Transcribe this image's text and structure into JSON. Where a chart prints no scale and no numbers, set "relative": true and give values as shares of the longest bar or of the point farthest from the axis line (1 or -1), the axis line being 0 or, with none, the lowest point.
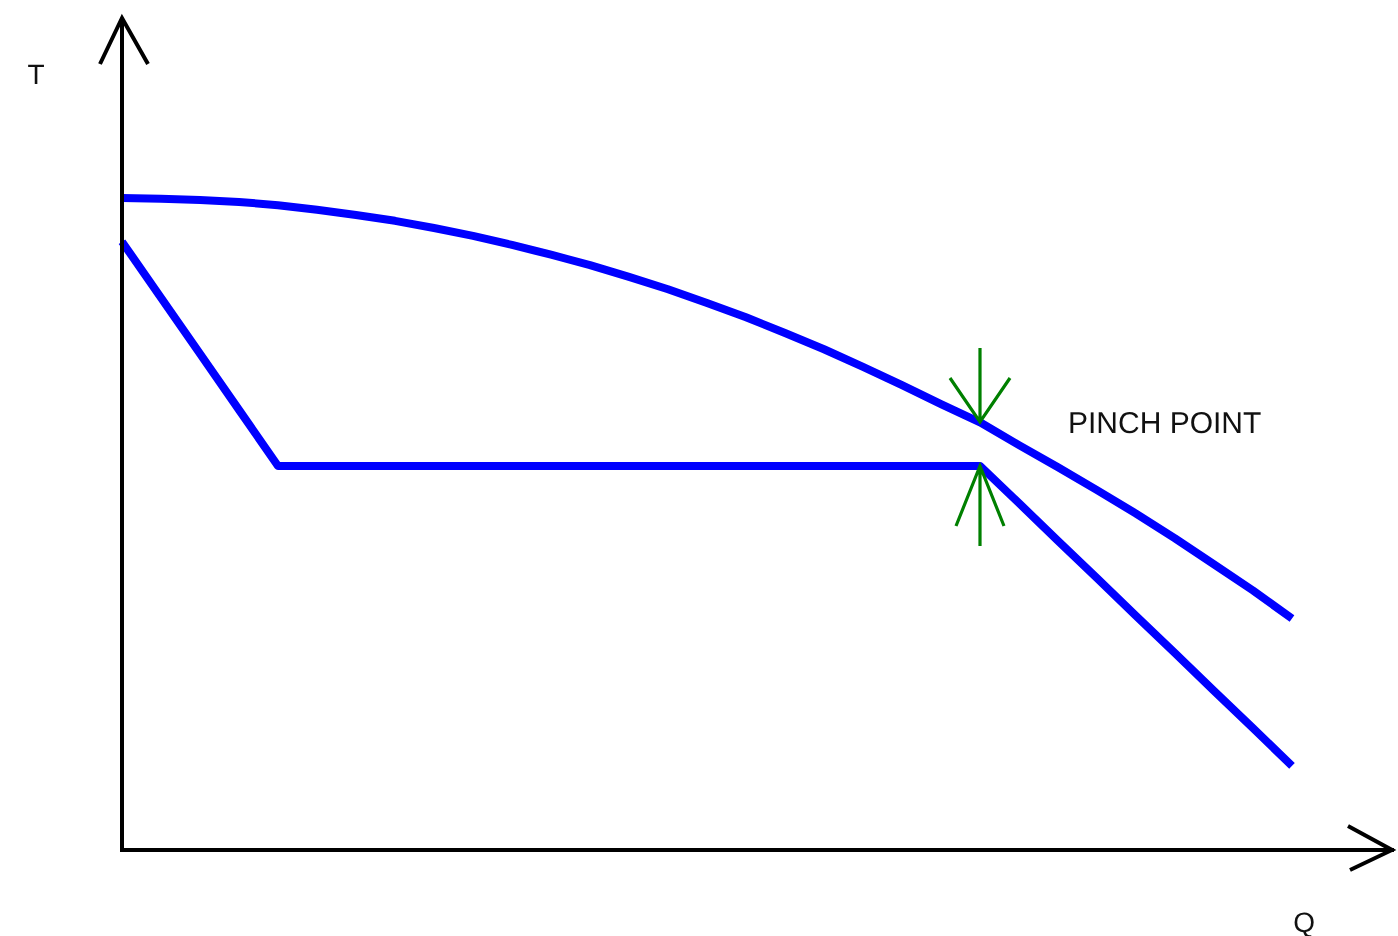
{
  "chart_data": {
    "type": "line",
    "xlabel": "Q",
    "ylabel": "T",
    "annotations": [
      "PINCH POINT"
    ],
    "categories": [
      null,
      null,
      null,
      null,
      null,
      null,
      null,
      null,
      null,
      null,
      null,
      null,
      null,
      null,
      null,
      null,
      null,
      null,
      null,
      null,
      null,
      null,
      null,
      null,
      null,
      null,
      null,
      null,
      null,
      null,
      null
    ],
    "relative": true,
    "series": [
      {
        "color": "#0000ff",
        "values": [
          1.0,
          0.999,
          0.997,
          0.994,
          0.989,
          0.982,
          0.974,
          0.965,
          0.954,
          0.942,
          0.928,
          0.913,
          0.897,
          0.879,
          0.86,
          0.839,
          0.817,
          0.793,
          0.768,
          0.741,
          0.713,
          0.684,
          0.656,
          0.621,
          0.587,
          0.552,
          0.516,
          0.478,
          0.438,
          0.398,
          0.355
        ]
      },
      {
        "color": "#0000ff",
        "values": [
          0.933,
          0.847,
          0.761,
          0.675,
          0.589,
          0.589,
          0.589,
          0.589,
          0.589,
          0.589,
          0.589,
          0.589,
          0.589,
          0.589,
          0.589,
          0.589,
          0.589,
          0.589,
          0.589,
          0.589,
          0.589,
          0.589,
          0.589,
          0.532,
          0.474,
          0.417,
          0.359,
          0.302,
          0.244,
          0.187,
          0.129
        ]
      }
    ],
    "grid": false,
    "legend": false,
    "marker": "none",
    "line_style": "solid",
    "tick_labels": false
  }
}
